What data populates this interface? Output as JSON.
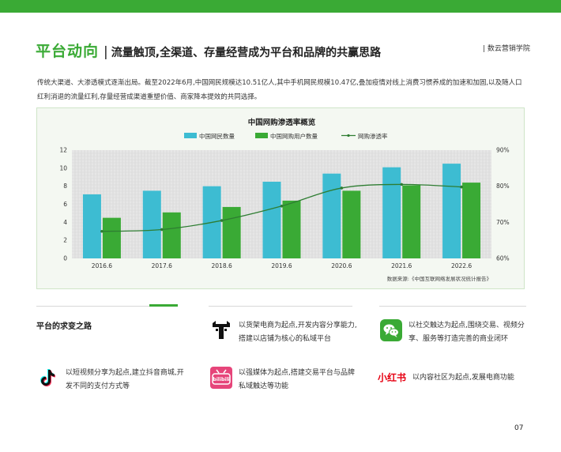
{
  "header": {
    "title": "平台动向",
    "separator": "|",
    "subtitle": "流量触顶,全渠道、存量经营成为平台和品牌的共赢思路",
    "brand": "| 数云营销学院"
  },
  "intro": {
    "text": "传统大渠道、大渗透模式逐渐出局。截至2022年6月,中国网民规模达10.51亿人,其中手机网民规模10.47亿,叠加疫情对线上消费习惯养成的加速和加固,以及随人口红利消退的流量红利,存量经营成渠道重塑价值、商家降本提效的共同选择。"
  },
  "chart_data": {
    "type": "bar",
    "title": "中国网购渗透率概览",
    "categories": [
      "2016.6",
      "2017.6",
      "2018.6",
      "2019.6",
      "2020.6",
      "2021.6",
      "2022.6"
    ],
    "series": [
      {
        "name": "中国网民数量",
        "type": "bar",
        "axis": "left",
        "color": "#3dbcd2",
        "values": [
          7.1,
          7.5,
          8.0,
          8.5,
          9.4,
          10.1,
          10.5
        ]
      },
      {
        "name": "中国网购用户数量",
        "type": "bar",
        "axis": "left",
        "color": "#3aaa35",
        "values": [
          4.5,
          5.1,
          5.7,
          6.4,
          7.5,
          8.1,
          8.4
        ]
      },
      {
        "name": "网购渗透率",
        "type": "line",
        "axis": "right",
        "color": "#2e7d32",
        "values": [
          67.5,
          68.0,
          70.5,
          74.5,
          79.5,
          80.5,
          79.8
        ]
      }
    ],
    "ylim": [
      0,
      12
    ],
    "yticks": [
      "0",
      "2",
      "4",
      "6",
      "8",
      "10",
      "12"
    ],
    "y2lim": [
      60,
      90
    ],
    "y2ticks": [
      "60%",
      "70%",
      "80%",
      "90%"
    ],
    "grid": true,
    "legend": "top",
    "source": "数据来源:《中国互联网络发展状况统计报告》"
  },
  "section": {
    "title": "平台的求变之路"
  },
  "platforms": [
    {
      "icon": "tmall-icon",
      "text": "以货架电商为起点,开发内容分享能力,搭建以店铺为核心的私域平台"
    },
    {
      "icon": "wechat-icon",
      "text": "以社交触达为起点,围绕交易、视频分享、服务等打造完善的商业闭环"
    },
    {
      "icon": "douyin-icon",
      "text": "以短视频分享为起点,建立抖音商城,开发不同的支付方式等"
    },
    {
      "icon": "bilibili-icon",
      "text": "以强媒体为起点,搭建交易平台与品牌私域触达等功能"
    },
    {
      "icon": "xiaohongshu-icon",
      "text": "以内容社区为起点,发展电商功能"
    }
  ],
  "icons": {
    "bilibili_label": "bilibili",
    "xiaohongshu_label": "小红书"
  },
  "page": {
    "number": "07"
  },
  "colors": {
    "accent": "#3aaa35",
    "cyan": "#3dbcd2",
    "line": "#2e7d32"
  }
}
